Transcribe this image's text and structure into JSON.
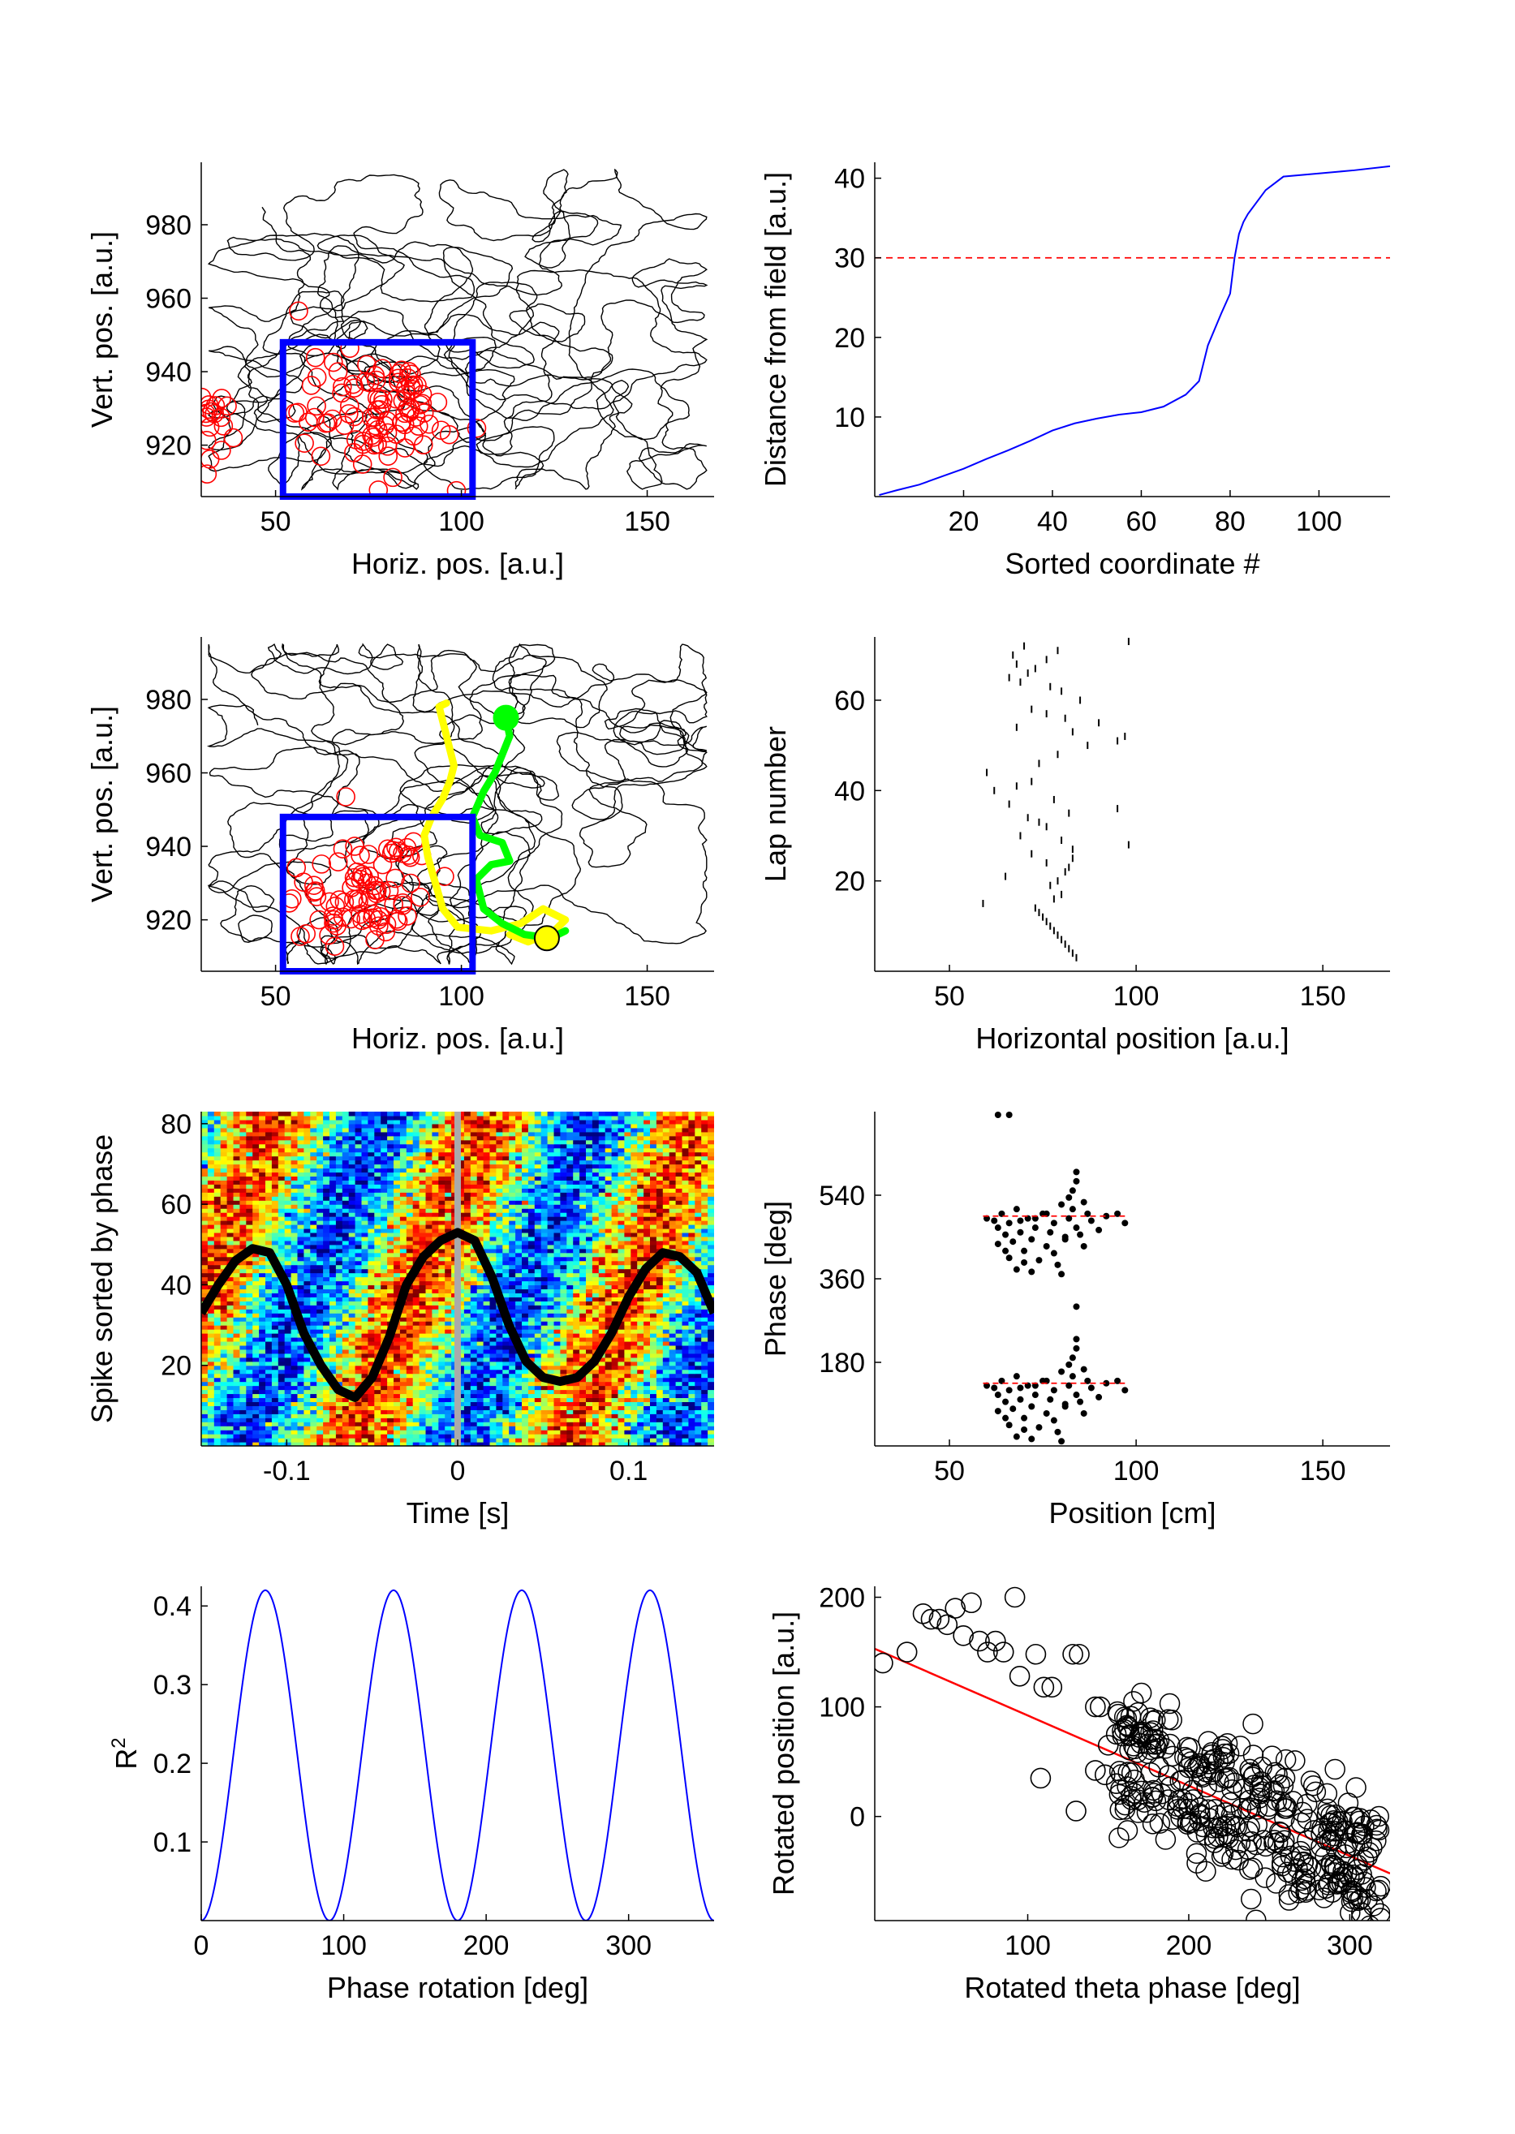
{
  "figure": {
    "panel_count": 8
  },
  "chart_data": [
    {
      "id": "p1",
      "type": "scatter",
      "title": "",
      "xlabel": "Horiz. pos. [a.u.]",
      "ylabel": "Vert. pos. [a.u.]",
      "xlim": [
        30,
        168
      ],
      "ylim": [
        906,
        997
      ],
      "xticks": [
        50,
        100,
        150
      ],
      "yticks": [
        920,
        940,
        960,
        980
      ],
      "trajectory_color": "#000000",
      "spike_color": "#ff0000",
      "field_box": {
        "x": [
          52,
          103
        ],
        "y": [
          906,
          948
        ],
        "color": "#0000ff"
      },
      "spike_clusters": [
        {
          "cx": 76,
          "cy": 928,
          "sx": 10,
          "sy": 8,
          "n": 85
        },
        {
          "cx": 32,
          "cy": 927,
          "sx": 2,
          "sy": 5,
          "n": 18
        },
        {
          "cx": 84,
          "cy": 938,
          "sx": 3,
          "sy": 2,
          "n": 10
        }
      ]
    },
    {
      "id": "p2",
      "type": "line",
      "title": "",
      "xlabel": "Sorted coordinate #",
      "ylabel": "Distance from field [a.u.]",
      "xlim": [
        0,
        116
      ],
      "ylim": [
        0,
        42
      ],
      "xticks": [
        20,
        40,
        60,
        80,
        100
      ],
      "yticks": [
        10,
        20,
        30,
        40
      ],
      "series": [
        {
          "color": "#0000ff",
          "x": [
            1,
            5,
            10,
            15,
            20,
            25,
            30,
            35,
            40,
            45,
            50,
            55,
            60,
            65,
            70,
            73,
            75,
            78,
            80,
            81,
            82,
            83,
            84,
            88,
            92,
            100,
            108,
            116
          ],
          "y": [
            0.2,
            0.8,
            1.5,
            2.5,
            3.5,
            4.7,
            5.8,
            7.0,
            8.3,
            9.2,
            9.8,
            10.3,
            10.6,
            11.3,
            12.8,
            14.5,
            19,
            23,
            25.5,
            30,
            33,
            34.5,
            35.5,
            38.5,
            40.2,
            40.6,
            41.0,
            41.5
          ]
        }
      ],
      "threshold": {
        "y": 30,
        "color": "#ff0000",
        "style": "dashed"
      }
    },
    {
      "id": "p3",
      "type": "scatter",
      "title": "",
      "xlabel": "Horiz. pos. [a.u.]",
      "ylabel": "Vert. pos. [a.u.]",
      "xlim": [
        30,
        168
      ],
      "ylim": [
        906,
        997
      ],
      "xticks": [
        50,
        100,
        150
      ],
      "yticks": [
        920,
        940,
        960,
        980
      ],
      "field_box": {
        "x": [
          52,
          103
        ],
        "y": [
          906,
          948
        ],
        "color": "#0000ff"
      },
      "path_yellow": {
        "color": "#ffff00",
        "x": [
          113,
          118,
          125,
          128,
          122,
          116,
          108,
          99,
          95,
          93,
          91,
          90,
          92,
          95,
          97,
          98,
          97,
          96,
          95,
          94,
          96
        ],
        "y": [
          916,
          914,
          917,
          920,
          923,
          919,
          917,
          918,
          923,
          930,
          937,
          943,
          948,
          953,
          958,
          962,
          966,
          970,
          974,
          978,
          979
        ],
        "end_marker": {
          "x": 123,
          "y": 915
        }
      },
      "path_green": {
        "color": "#00ff00",
        "x": [
          128,
          124,
          117,
          111,
          106,
          104,
          108,
          113,
          111,
          105,
          103,
          106,
          109,
          111,
          113,
          112
        ],
        "y": [
          917,
          915,
          916,
          919,
          923,
          931,
          935,
          936,
          941,
          943,
          948,
          955,
          960,
          965,
          970,
          975
        ],
        "end_marker": {
          "x": 112,
          "y": 975
        }
      },
      "spike_clusters": [
        {
          "cx": 74,
          "cy": 927,
          "sx": 9,
          "sy": 7,
          "n": 75
        },
        {
          "cx": 84,
          "cy": 938,
          "sx": 3,
          "sy": 2,
          "n": 8
        }
      ]
    },
    {
      "id": "p4",
      "type": "scatter",
      "title": "",
      "xlabel": "Horizontal position [a.u.]",
      "ylabel": "Lap number",
      "xlim": [
        30,
        168
      ],
      "ylim": [
        0,
        74
      ],
      "xticks": [
        50,
        100,
        150
      ],
      "yticks": [
        20,
        40,
        60
      ],
      "laps": [
        3,
        4,
        5,
        6,
        7,
        8,
        9,
        10,
        11,
        12,
        13,
        14,
        15,
        16,
        17,
        19,
        20,
        21,
        22,
        23,
        24,
        25,
        26,
        27,
        28,
        29,
        30,
        32,
        33,
        34,
        35,
        36,
        37,
        38,
        40,
        41,
        42,
        44,
        46,
        48,
        50,
        51,
        52,
        53,
        54,
        55,
        56,
        57,
        58,
        60,
        62,
        63,
        64,
        65,
        66,
        67,
        68,
        69,
        70,
        71,
        72,
        73
      ],
      "positions": [
        84,
        83,
        82,
        81,
        80,
        79,
        78,
        77,
        76,
        75,
        74,
        73,
        59,
        78,
        80,
        77,
        79,
        65,
        81,
        82,
        76,
        83,
        72,
        83,
        98,
        80,
        69,
        76,
        74,
        71,
        82,
        95,
        66,
        78,
        62,
        68,
        72,
        60,
        74,
        79,
        87,
        95,
        97,
        83,
        68,
        90,
        81,
        76,
        72,
        85,
        80,
        77,
        69,
        66,
        71,
        73,
        68,
        76,
        67,
        79,
        70,
        98
      ]
    },
    {
      "id": "p5",
      "type": "heatmap",
      "title": "",
      "xlabel": "Time [s]",
      "ylabel": "Spike sorted by phase",
      "xlim": [
        -0.15,
        0.15
      ],
      "ylim": [
        0,
        83
      ],
      "xticks": [
        -0.1,
        0,
        0.1
      ],
      "xtick_labels": [
        "-0.1",
        "0",
        "0.1"
      ],
      "yticks": [
        20,
        40,
        60,
        80
      ],
      "colormap": "jet",
      "zero_line_color": "#aaaaaa",
      "overlay": {
        "color": "#000000",
        "x": [
          -0.15,
          -0.14,
          -0.13,
          -0.12,
          -0.11,
          -0.1,
          -0.09,
          -0.08,
          -0.07,
          -0.06,
          -0.05,
          -0.04,
          -0.03,
          -0.02,
          -0.01,
          0.0,
          0.01,
          0.02,
          0.03,
          0.04,
          0.05,
          0.06,
          0.07,
          0.08,
          0.09,
          0.1,
          0.11,
          0.12,
          0.13,
          0.14,
          0.15
        ],
        "y": [
          33,
          40,
          46,
          49,
          48,
          40,
          28,
          20,
          14,
          12,
          17,
          27,
          40,
          47,
          51,
          53,
          51,
          42,
          30,
          21,
          17,
          16,
          17,
          21,
          28,
          37,
          44,
          48,
          47,
          43,
          33
        ]
      }
    },
    {
      "id": "p6",
      "type": "scatter",
      "title": "",
      "xlabel": "Position [cm]",
      "ylabel": "Phase [deg]",
      "xlim": [
        30,
        168
      ],
      "ylim": [
        0,
        720
      ],
      "xticks": [
        50,
        100,
        150
      ],
      "yticks": [
        180,
        360,
        540
      ],
      "point_color": "#000000",
      "phase_points": [
        [
          60,
          130
        ],
        [
          62,
          125
        ],
        [
          63,
          110
        ],
        [
          64,
          140
        ],
        [
          65,
          95
        ],
        [
          66,
          120
        ],
        [
          67,
          80
        ],
        [
          68,
          150
        ],
        [
          69,
          100
        ],
        [
          70,
          60
        ],
        [
          71,
          130
        ],
        [
          72,
          85
        ],
        [
          73,
          110
        ],
        [
          74,
          40
        ],
        [
          75,
          140
        ],
        [
          76,
          70
        ],
        [
          77,
          100
        ],
        [
          78,
          120
        ],
        [
          79,
          30
        ],
        [
          80,
          160
        ],
        [
          81,
          90
        ],
        [
          82,
          130
        ],
        [
          83,
          150
        ],
        [
          84,
          110
        ],
        [
          85,
          95
        ],
        [
          86,
          70
        ],
        [
          87,
          140
        ],
        [
          88,
          125
        ],
        [
          90,
          105
        ],
        [
          92,
          135
        ],
        [
          95,
          140
        ],
        [
          97,
          120
        ],
        [
          83,
          190
        ],
        [
          84,
          210
        ],
        [
          82,
          175
        ],
        [
          86,
          165
        ],
        [
          68,
          20
        ],
        [
          72,
          15
        ],
        [
          80,
          10
        ],
        [
          66,
          45
        ],
        [
          70,
          35
        ],
        [
          78,
          55
        ],
        [
          76,
          140
        ],
        [
          65,
          60
        ],
        [
          73,
          130
        ],
        [
          84,
          230
        ],
        [
          81,
          85
        ],
        [
          69,
          125
        ],
        [
          63,
          75
        ]
      ],
      "fit": {
        "y": 135,
        "x": [
          59,
          97
        ],
        "color": "#ff0000"
      },
      "fit2": {
        "y": 495,
        "x": [
          59,
          97
        ],
        "color": "#ff0000"
      },
      "outliers": [
        [
          63,
          720
        ],
        [
          66,
          720
        ],
        [
          84,
          300
        ]
      ]
    },
    {
      "id": "p7",
      "type": "line",
      "title": "",
      "xlabel": "Phase rotation [deg]",
      "ylabel": "R2",
      "xlim": [
        0,
        360
      ],
      "ylim": [
        0,
        0.425
      ],
      "xticks": [
        0,
        100,
        200,
        300
      ],
      "yticks": [
        0.1,
        0.2,
        0.3,
        0.4
      ],
      "series": [
        {
          "color": "#0000ff",
          "amplitude": 0.42,
          "period_deg": 90
        }
      ]
    },
    {
      "id": "p8",
      "type": "scatter",
      "title": "",
      "xlabel": "Rotated theta phase [deg]",
      "ylabel": "Rotated position [a.u.]",
      "xlim": [
        5,
        325
      ],
      "ylim": [
        -95,
        210
      ],
      "xticks": [
        100,
        200,
        300
      ],
      "yticks": [
        0,
        100,
        200
      ],
      "marker": "open-circle",
      "fit": {
        "x": [
          5,
          325
        ],
        "y": [
          153,
          -52
        ],
        "color": "#ff0000"
      },
      "sparse_points": [
        [
          10,
          140
        ],
        [
          25,
          150
        ],
        [
          35,
          185
        ],
        [
          40,
          180
        ],
        [
          45,
          180
        ],
        [
          50,
          175
        ],
        [
          55,
          190
        ],
        [
          60,
          165
        ],
        [
          65,
          195
        ],
        [
          70,
          160
        ],
        [
          75,
          150
        ],
        [
          80,
          160
        ],
        [
          85,
          150
        ],
        [
          92,
          200
        ],
        [
          95,
          128
        ],
        [
          105,
          148
        ],
        [
          110,
          118
        ],
        [
          115,
          118
        ],
        [
          128,
          148
        ],
        [
          132,
          148
        ],
        [
          142,
          100
        ],
        [
          145,
          100
        ],
        [
          150,
          65
        ],
        [
          155,
          75
        ],
        [
          108,
          35
        ],
        [
          130,
          5
        ],
        [
          142,
          42
        ],
        [
          148,
          38
        ],
        [
          155,
          30
        ],
        [
          162,
          82
        ],
        [
          170,
          75
        ],
        [
          176,
          70
        ],
        [
          180,
          62
        ],
        [
          190,
          55
        ]
      ],
      "dense_cluster": {
        "x_range": [
          155,
          320
        ],
        "n": 360
      }
    }
  ]
}
